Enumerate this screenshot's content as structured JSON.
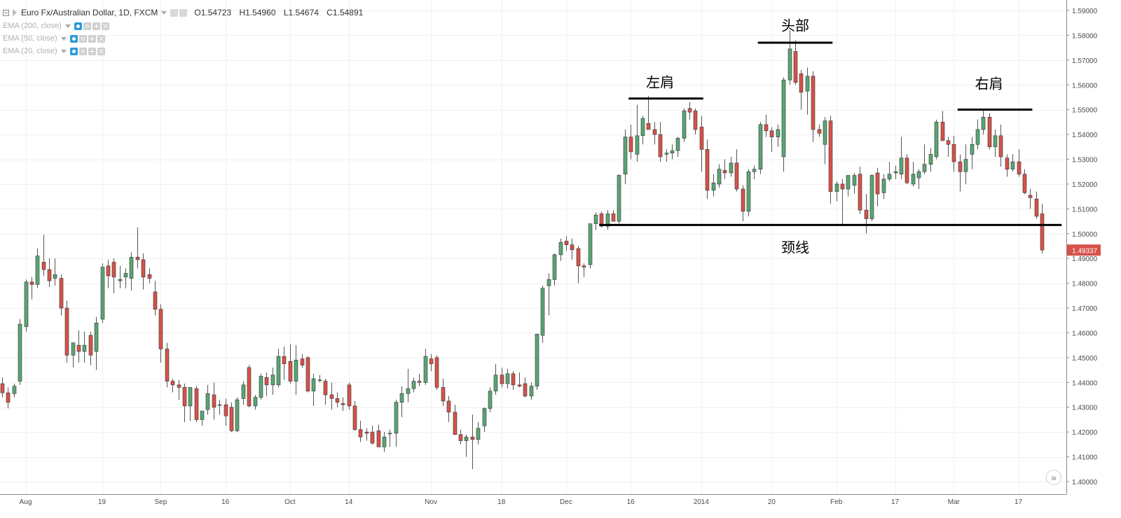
{
  "header": {
    "symbol_title": "Euro Fx/Australian Dollar, 1D, FXCM",
    "ohlc": {
      "open": "O1.54723",
      "high": "H1.54960",
      "low": "L1.54674",
      "close": "C1.54891"
    }
  },
  "indicators": [
    {
      "label": "EMA (200, close)"
    },
    {
      "label": "EMA (50, close)"
    },
    {
      "label": "EMA (20, close)"
    }
  ],
  "scroll_button": "»",
  "colors": {
    "up": "#5aa573",
    "down": "#d6524a",
    "grid": "#f0f0f0",
    "axis_text": "#4a4a4a",
    "last_price_bg": "#d6524a"
  },
  "chart_data": {
    "type": "candlestick",
    "price_axis": {
      "min": 1.4,
      "max": 1.59,
      "ticks": [
        "1.59000",
        "1.58000",
        "1.57000",
        "1.56000",
        "1.55000",
        "1.54000",
        "1.53000",
        "1.52000",
        "1.51000",
        "1.50000",
        "1.49000",
        "1.48000",
        "1.47000",
        "1.46000",
        "1.45000",
        "1.44000",
        "1.43000",
        "1.42000",
        "1.41000",
        "1.40000"
      ]
    },
    "last_price": "1.49337",
    "time_labels": [
      {
        "bar": 4,
        "label": "Aug"
      },
      {
        "bar": 17,
        "label": "19"
      },
      {
        "bar": 27,
        "label": "Sep"
      },
      {
        "bar": 38,
        "label": "16"
      },
      {
        "bar": 49,
        "label": "Oct"
      },
      {
        "bar": 59,
        "label": "14"
      },
      {
        "bar": 73,
        "label": "Nov"
      },
      {
        "bar": 85,
        "label": "18"
      },
      {
        "bar": 96,
        "label": "Dec"
      },
      {
        "bar": 107,
        "label": "16"
      },
      {
        "bar": 119,
        "label": "2014"
      },
      {
        "bar": 131,
        "label": "20"
      },
      {
        "bar": 142,
        "label": "Feb"
      },
      {
        "bar": 152,
        "label": "17"
      },
      {
        "bar": 162,
        "label": "Mar"
      },
      {
        "bar": 173,
        "label": "17"
      }
    ],
    "ohlc": [
      [
        1.4395,
        1.442,
        1.434,
        1.4358
      ],
      [
        1.4358,
        1.438,
        1.4295,
        1.432
      ],
      [
        1.4355,
        1.4395,
        1.434,
        1.4385
      ],
      [
        1.4405,
        1.4655,
        1.439,
        1.4635
      ],
      [
        1.4625,
        1.4815,
        1.4605,
        1.4805
      ],
      [
        1.4805,
        1.4825,
        1.4735,
        1.4795
      ],
      [
        1.4795,
        1.494,
        1.478,
        1.491
      ],
      [
        1.4885,
        1.4995,
        1.483,
        1.4855
      ],
      [
        1.4855,
        1.49,
        1.4785,
        1.481
      ],
      [
        1.482,
        1.49,
        1.479,
        1.4835
      ],
      [
        1.482,
        1.4835,
        1.467,
        1.47
      ],
      [
        1.47,
        1.473,
        1.448,
        1.451
      ],
      [
        1.451,
        1.456,
        1.446,
        1.456
      ],
      [
        1.455,
        1.461,
        1.448,
        1.4525
      ],
      [
        1.4525,
        1.4605,
        1.448,
        1.455
      ],
      [
        1.459,
        1.4605,
        1.447,
        1.451
      ],
      [
        1.4525,
        1.4665,
        1.445,
        1.464
      ],
      [
        1.4655,
        1.488,
        1.464,
        1.4865
      ],
      [
        1.487,
        1.4895,
        1.478,
        1.483
      ],
      [
        1.4885,
        1.49,
        1.476,
        1.4825
      ],
      [
        1.481,
        1.487,
        1.478,
        1.4815
      ],
      [
        1.4825,
        1.486,
        1.478,
        1.484
      ],
      [
        1.482,
        1.4925,
        1.477,
        1.4905
      ],
      [
        1.4905,
        1.5025,
        1.486,
        1.4895
      ],
      [
        1.4895,
        1.492,
        1.4775,
        1.4825
      ],
      [
        1.4835,
        1.486,
        1.48,
        1.482
      ],
      [
        1.4765,
        1.481,
        1.467,
        1.4695
      ],
      [
        1.4695,
        1.4715,
        1.448,
        1.4535
      ],
      [
        1.4535,
        1.456,
        1.438,
        1.4405
      ],
      [
        1.4405,
        1.4415,
        1.436,
        1.439
      ],
      [
        1.439,
        1.441,
        1.433,
        1.438
      ],
      [
        1.438,
        1.4395,
        1.424,
        1.4305
      ],
      [
        1.4305,
        1.4375,
        1.4245,
        1.438
      ],
      [
        1.4375,
        1.4385,
        1.424,
        1.425
      ],
      [
        1.425,
        1.4285,
        1.4225,
        1.4285
      ],
      [
        1.429,
        1.439,
        1.427,
        1.4355
      ],
      [
        1.435,
        1.44,
        1.425,
        1.43
      ],
      [
        1.4308,
        1.433,
        1.427,
        1.431
      ],
      [
        1.431,
        1.4335,
        1.4225,
        1.4265
      ],
      [
        1.43,
        1.432,
        1.42,
        1.4205
      ],
      [
        1.4205,
        1.434,
        1.42,
        1.433
      ],
      [
        1.4335,
        1.4405,
        1.431,
        1.439
      ],
      [
        1.446,
        1.447,
        1.43,
        1.4305
      ],
      [
        1.4305,
        1.435,
        1.429,
        1.434
      ],
      [
        1.434,
        1.4435,
        1.433,
        1.4425
      ],
      [
        1.442,
        1.444,
        1.4345,
        1.439
      ],
      [
        1.439,
        1.446,
        1.435,
        1.443
      ],
      [
        1.439,
        1.4535,
        1.438,
        1.4505
      ],
      [
        1.4505,
        1.4545,
        1.441,
        1.4475
      ],
      [
        1.4485,
        1.4555,
        1.4395,
        1.4405
      ],
      [
        1.4405,
        1.455,
        1.435,
        1.449
      ],
      [
        1.4495,
        1.4515,
        1.446,
        1.447
      ],
      [
        1.45,
        1.4505,
        1.436,
        1.4365
      ],
      [
        1.4365,
        1.4435,
        1.4305,
        1.4415
      ],
      [
        1.441,
        1.443,
        1.44,
        1.441
      ],
      [
        1.4405,
        1.4415,
        1.431,
        1.435
      ],
      [
        1.435,
        1.44,
        1.429,
        1.4335
      ],
      [
        1.4335,
        1.436,
        1.43,
        1.432
      ],
      [
        1.4315,
        1.434,
        1.4285,
        1.431
      ],
      [
        1.439,
        1.44,
        1.429,
        1.4305
      ],
      [
        1.4305,
        1.4325,
        1.4205,
        1.421
      ],
      [
        1.421,
        1.4245,
        1.416,
        1.418
      ],
      [
        1.42,
        1.4215,
        1.4165,
        1.4195
      ],
      [
        1.42,
        1.4225,
        1.415,
        1.4155
      ],
      [
        1.4205,
        1.423,
        1.415,
        1.414
      ],
      [
        1.414,
        1.42,
        1.412,
        1.418
      ],
      [
        1.4195,
        1.421,
        1.414,
        1.4195
      ],
      [
        1.4195,
        1.433,
        1.414,
        1.432
      ],
      [
        1.432,
        1.4385,
        1.426,
        1.4355
      ],
      [
        1.4355,
        1.4455,
        1.432,
        1.4375
      ],
      [
        1.4375,
        1.442,
        1.436,
        1.4405
      ],
      [
        1.4405,
        1.4435,
        1.4385,
        1.44
      ],
      [
        1.44,
        1.4535,
        1.439,
        1.4505
      ],
      [
        1.4495,
        1.4515,
        1.4445,
        1.4475
      ],
      [
        1.45,
        1.451,
        1.437,
        1.438
      ],
      [
        1.438,
        1.4415,
        1.4305,
        1.4325
      ],
      [
        1.4325,
        1.4345,
        1.424,
        1.428
      ],
      [
        1.428,
        1.431,
        1.419,
        1.419
      ],
      [
        1.419,
        1.421,
        1.415,
        1.4165
      ],
      [
        1.4165,
        1.419,
        1.41,
        1.418
      ],
      [
        1.418,
        1.427,
        1.405,
        1.417
      ],
      [
        1.417,
        1.424,
        1.415,
        1.4215
      ],
      [
        1.4225,
        1.43,
        1.42,
        1.4295
      ],
      [
        1.4295,
        1.438,
        1.428,
        1.4365
      ],
      [
        1.4365,
        1.4475,
        1.435,
        1.443
      ],
      [
        1.443,
        1.446,
        1.438,
        1.4395
      ],
      [
        1.4395,
        1.4455,
        1.4375,
        1.4435
      ],
      [
        1.4435,
        1.4445,
        1.437,
        1.439
      ],
      [
        1.439,
        1.444,
        1.438,
        1.4385
      ],
      [
        1.4395,
        1.442,
        1.434,
        1.4345
      ],
      [
        1.4345,
        1.44,
        1.433,
        1.4385
      ],
      [
        1.4385,
        1.4595,
        1.437,
        1.4595
      ],
      [
        1.459,
        1.479,
        1.456,
        1.478
      ],
      [
        1.479,
        1.484,
        1.467,
        1.4815
      ],
      [
        1.4815,
        1.492,
        1.479,
        1.4915
      ],
      [
        1.4915,
        1.498,
        1.489,
        1.4965
      ],
      [
        1.497,
        1.499,
        1.493,
        1.4955
      ],
      [
        1.4955,
        1.498,
        1.4895,
        1.4935
      ],
      [
        1.494,
        1.495,
        1.48,
        1.487
      ],
      [
        1.487,
        1.488,
        1.4825,
        1.4865
      ],
      [
        1.4875,
        1.504,
        1.486,
        1.504
      ],
      [
        1.504,
        1.5085,
        1.5015,
        1.5075
      ],
      [
        1.508,
        1.509,
        1.5025,
        1.503
      ],
      [
        1.503,
        1.5095,
        1.5015,
        1.508
      ],
      [
        1.508,
        1.5095,
        1.505,
        1.505
      ],
      [
        1.505,
        1.524,
        1.504,
        1.5235
      ],
      [
        1.524,
        1.542,
        1.52,
        1.539
      ],
      [
        1.539,
        1.544,
        1.53,
        1.533
      ],
      [
        1.532,
        1.552,
        1.529,
        1.5395
      ],
      [
        1.5395,
        1.5475,
        1.536,
        1.5465
      ],
      [
        1.5445,
        1.5555,
        1.542,
        1.542
      ],
      [
        1.542,
        1.545,
        1.536,
        1.54
      ],
      [
        1.54,
        1.545,
        1.529,
        1.531
      ],
      [
        1.532,
        1.534,
        1.529,
        1.5325
      ],
      [
        1.5325,
        1.536,
        1.53,
        1.5335
      ],
      [
        1.5335,
        1.539,
        1.531,
        1.5385
      ],
      [
        1.5385,
        1.5505,
        1.537,
        1.5495
      ],
      [
        1.5505,
        1.553,
        1.546,
        1.549
      ],
      [
        1.5495,
        1.5505,
        1.54,
        1.542
      ],
      [
        1.543,
        1.5475,
        1.525,
        1.534
      ],
      [
        1.534,
        1.538,
        1.514,
        1.5175
      ],
      [
        1.5175,
        1.524,
        1.515,
        1.5205
      ],
      [
        1.52,
        1.528,
        1.5185,
        1.526
      ],
      [
        1.5255,
        1.53,
        1.522,
        1.5245
      ],
      [
        1.5245,
        1.531,
        1.523,
        1.5285
      ],
      [
        1.5285,
        1.534,
        1.517,
        1.518
      ],
      [
        1.518,
        1.5195,
        1.505,
        1.509
      ],
      [
        1.509,
        1.526,
        1.507,
        1.525
      ],
      [
        1.525,
        1.5275,
        1.522,
        1.526
      ],
      [
        1.526,
        1.545,
        1.524,
        1.544
      ],
      [
        1.544,
        1.548,
        1.539,
        1.5415
      ],
      [
        1.5415,
        1.543,
        1.533,
        1.539
      ],
      [
        1.539,
        1.544,
        1.535,
        1.542
      ],
      [
        1.531,
        1.563,
        1.525,
        1.562
      ],
      [
        1.562,
        1.582,
        1.56,
        1.5745
      ],
      [
        1.5735,
        1.578,
        1.56,
        1.561
      ],
      [
        1.5645,
        1.566,
        1.55,
        1.557
      ],
      [
        1.5575,
        1.567,
        1.548,
        1.5635
      ],
      [
        1.5635,
        1.5655,
        1.537,
        1.542
      ],
      [
        1.542,
        1.544,
        1.539,
        1.5405
      ],
      [
        1.536,
        1.547,
        1.528,
        1.5455
      ],
      [
        1.5455,
        1.5475,
        1.512,
        1.517
      ],
      [
        1.517,
        1.521,
        1.513,
        1.52
      ],
      [
        1.52,
        1.522,
        1.503,
        1.518
      ],
      [
        1.518,
        1.523,
        1.515,
        1.5235
      ],
      [
        1.5195,
        1.5245,
        1.516,
        1.5235
      ],
      [
        1.524,
        1.527,
        1.508,
        1.5095
      ],
      [
        1.5095,
        1.516,
        1.5,
        1.506
      ],
      [
        1.506,
        1.524,
        1.505,
        1.5235
      ],
      [
        1.5245,
        1.5265,
        1.511,
        1.516
      ],
      [
        1.5165,
        1.524,
        1.514,
        1.522
      ],
      [
        1.522,
        1.529,
        1.521,
        1.524
      ],
      [
        1.5245,
        1.5275,
        1.522,
        1.525
      ],
      [
        1.524,
        1.539,
        1.522,
        1.5305
      ],
      [
        1.5305,
        1.532,
        1.52,
        1.5205
      ],
      [
        1.52,
        1.529,
        1.519,
        1.524
      ],
      [
        1.5225,
        1.526,
        1.518,
        1.525
      ],
      [
        1.525,
        1.536,
        1.524,
        1.528
      ],
      [
        1.528,
        1.5345,
        1.525,
        1.532
      ],
      [
        1.531,
        1.546,
        1.53,
        1.545
      ],
      [
        1.545,
        1.5495,
        1.538,
        1.5375
      ],
      [
        1.5375,
        1.539,
        1.531,
        1.536
      ],
      [
        1.536,
        1.5395,
        1.525,
        1.529
      ],
      [
        1.529,
        1.532,
        1.517,
        1.525
      ],
      [
        1.525,
        1.536,
        1.52,
        1.53
      ],
      [
        1.532,
        1.539,
        1.526,
        1.536
      ],
      [
        1.536,
        1.546,
        1.534,
        1.542
      ],
      [
        1.542,
        1.5495,
        1.54,
        1.547
      ],
      [
        1.547,
        1.5485,
        1.534,
        1.535
      ],
      [
        1.535,
        1.542,
        1.531,
        1.5395
      ],
      [
        1.5395,
        1.544,
        1.527,
        1.531
      ],
      [
        1.5305,
        1.532,
        1.523,
        1.526
      ],
      [
        1.526,
        1.532,
        1.525,
        1.529
      ],
      [
        1.529,
        1.534,
        1.523,
        1.524
      ],
      [
        1.524,
        1.526,
        1.516,
        1.5165
      ],
      [
        1.5155,
        1.518,
        1.51,
        1.5145
      ],
      [
        1.514,
        1.517,
        1.506,
        1.507
      ],
      [
        1.508,
        1.512,
        1.492,
        1.4934
      ]
    ],
    "annotations": {
      "horizontal_segments": [
        {
          "name": "left-shoulder-line",
          "from_bar": 107,
          "to_bar": 119,
          "price": 1.5545
        },
        {
          "name": "head-line",
          "from_bar": 129,
          "to_bar": 141,
          "price": 1.577
        },
        {
          "name": "right-shoulder-line",
          "from_bar": 163,
          "to_bar": 175,
          "price": 1.55
        },
        {
          "name": "neckline",
          "from_bar": 102,
          "to_bar": 180,
          "price": 1.5035
        }
      ],
      "labels": [
        {
          "name": "left-shoulder-label",
          "text": "左肩",
          "bar": 112,
          "price": 1.561
        },
        {
          "name": "head-label",
          "text": "头部",
          "bar": 135,
          "price": 1.584
        },
        {
          "name": "right-shoulder-label",
          "text": "右肩",
          "bar": 168,
          "price": 1.5605
        },
        {
          "name": "neckline-label",
          "text": "颈线",
          "bar": 135,
          "price": 1.4945
        }
      ]
    }
  }
}
